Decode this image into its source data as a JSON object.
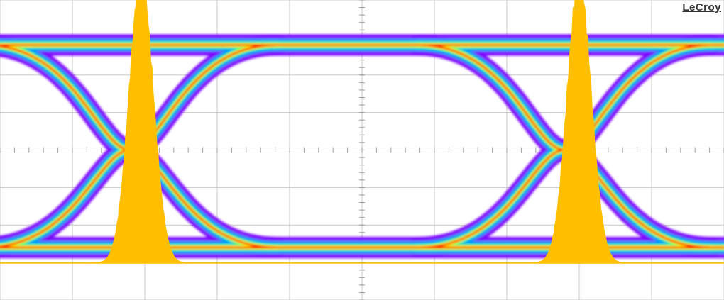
{
  "instrument": {
    "brand": "LeCroy"
  },
  "colors": {
    "background": "#ffffff",
    "grid": "#c8c8c8",
    "histogram": "#ffbf00",
    "density": [
      "#7a00ff",
      "#00a0ff",
      "#00ff80",
      "#ffff00",
      "#ff0000"
    ]
  },
  "chart_data": {
    "type": "eye-diagram",
    "display": {
      "grid": true,
      "divisions_x": 10,
      "divisions_y": 8,
      "persistence": "color-graded"
    },
    "eye": {
      "crossing_points_div": [
        1.8,
        7.8
      ],
      "upper_level_div": 2.8,
      "lower_level_div": -2.6,
      "crossing_level_div": 0.0
    },
    "jitter_histograms": [
      {
        "center_div": 1.95,
        "peak_div": 4.6
      },
      {
        "center_div": 8.0,
        "peak_div": 4.5
      }
    ]
  }
}
